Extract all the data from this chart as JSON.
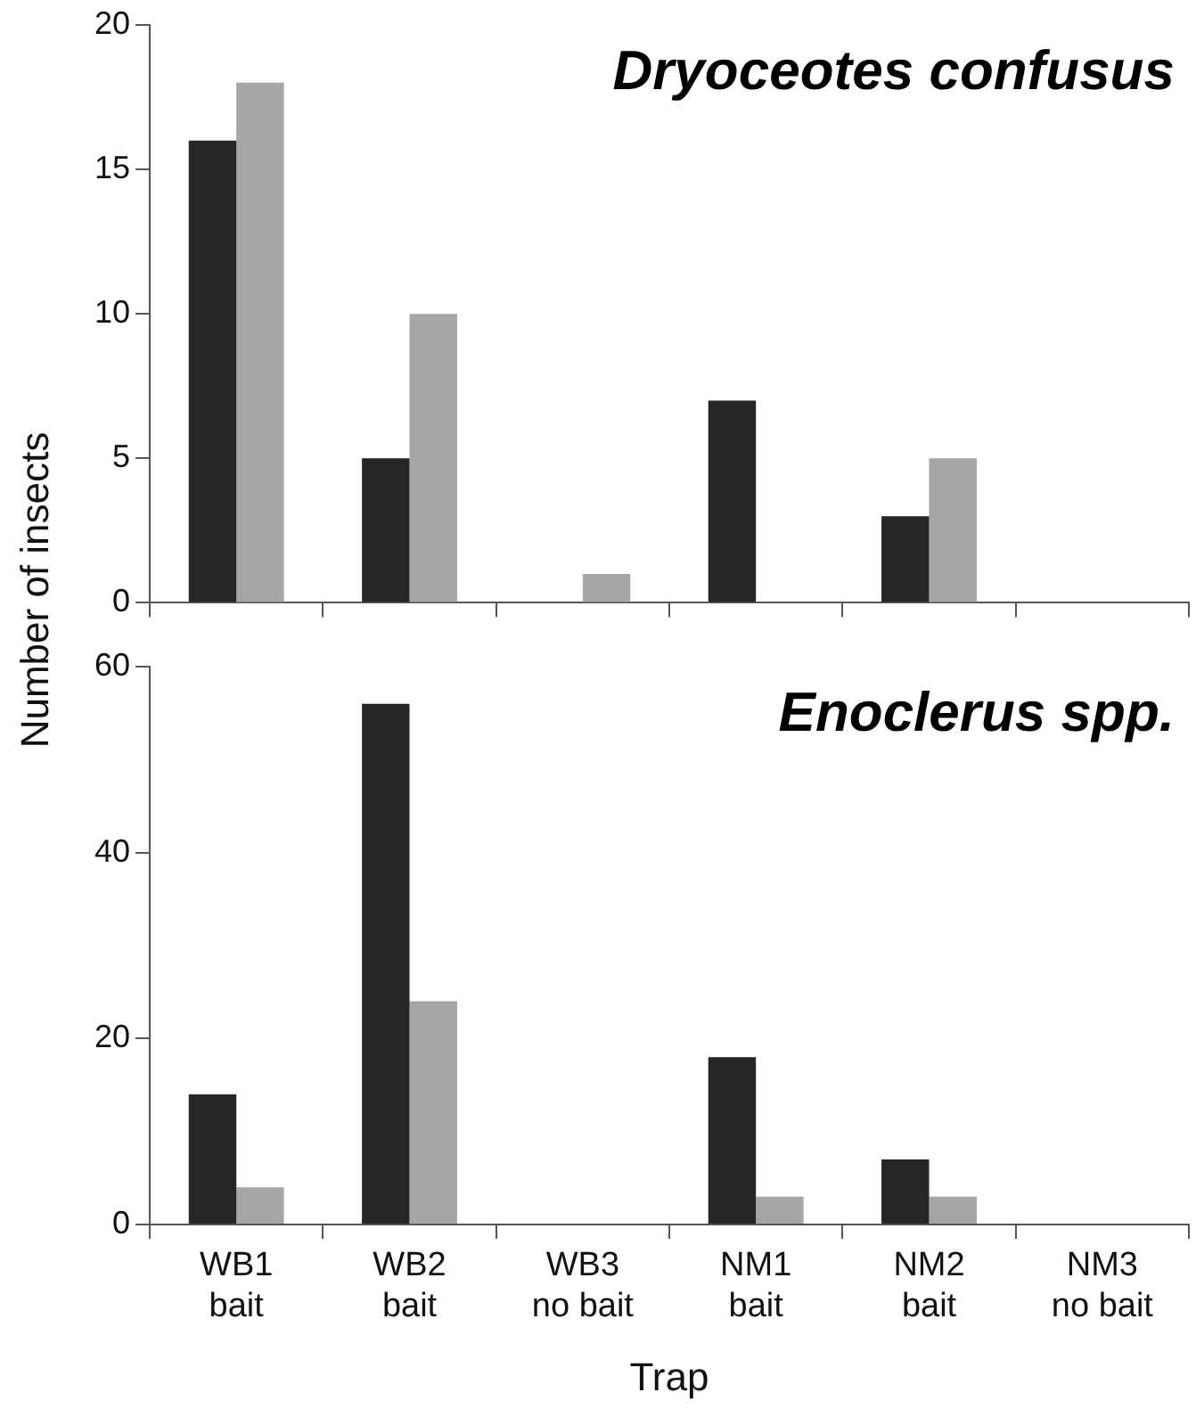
{
  "chart_data": [
    {
      "type": "bar",
      "title": "Dryoceotes confusus",
      "ylabel": "Number of insects",
      "categories": [
        null,
        null,
        null,
        null,
        null,
        null
      ],
      "series": [
        {
          "color": "#262626",
          "values": [
            16,
            5,
            0,
            7,
            3,
            0
          ]
        },
        {
          "color": "#a6a6a6",
          "values": [
            18,
            10,
            1,
            0,
            5,
            0
          ]
        }
      ],
      "ylim": [
        0,
        20
      ],
      "yticks": [
        0,
        5,
        10,
        15,
        20
      ],
      "grid": false,
      "legend": false,
      "tick_labels": "y"
    },
    {
      "type": "bar",
      "title": "Enoclerus spp.",
      "xlabel": "Trap",
      "categories": [
        "WB1\nbait",
        "WB2\nbait",
        "WB3\nno bait",
        "NM1\nbait",
        "NM2\nbait",
        "NM3\nno bait"
      ],
      "series": [
        {
          "color": "#262626",
          "values": [
            14,
            56,
            0,
            18,
            7,
            0
          ]
        },
        {
          "color": "#a6a6a6",
          "values": [
            4,
            24,
            0,
            3,
            3,
            0
          ]
        }
      ],
      "ylim": [
        0,
        60
      ],
      "yticks": [
        0,
        20,
        40,
        60
      ],
      "grid": false,
      "legend": false
    }
  ]
}
